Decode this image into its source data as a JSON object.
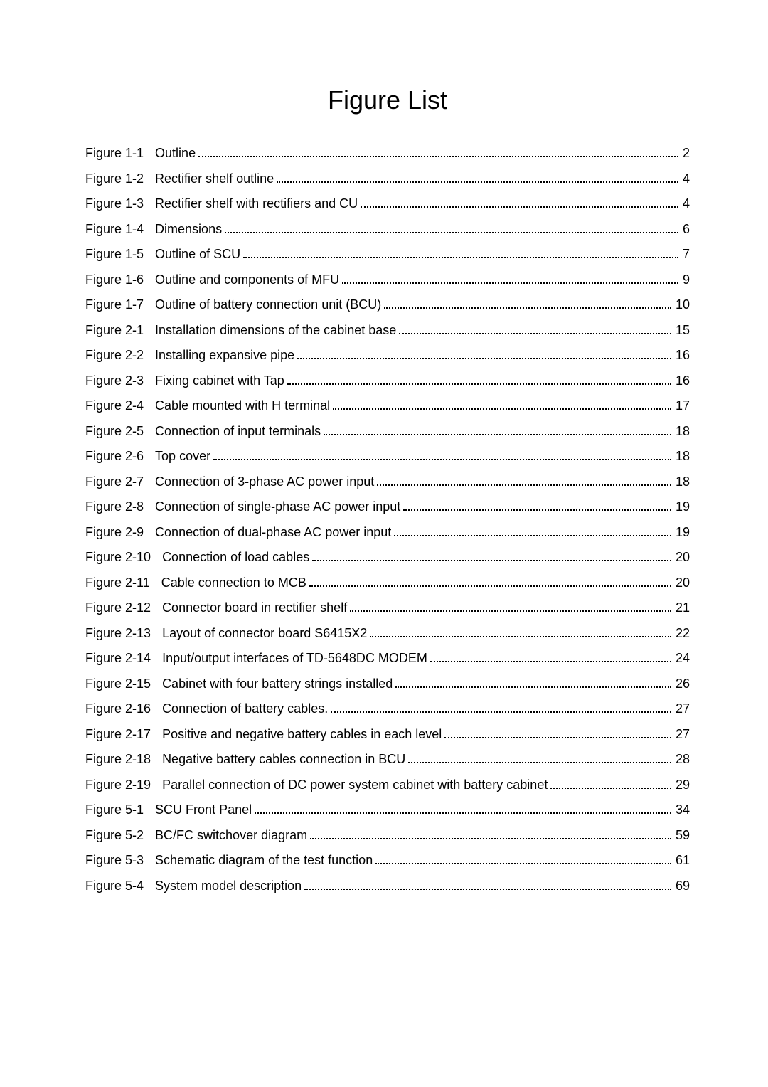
{
  "title": "Figure List",
  "entries": [
    {
      "label": "Figure 1-1",
      "desc": "Outline",
      "page": "2"
    },
    {
      "label": "Figure 1-2",
      "desc": "Rectifier shelf outline",
      "page": "4"
    },
    {
      "label": "Figure 1-3",
      "desc": "Rectifier shelf with rectifiers and CU",
      "page": "4"
    },
    {
      "label": "Figure 1-4",
      "desc": "Dimensions",
      "page": "6"
    },
    {
      "label": "Figure 1-5",
      "desc": "Outline of SCU",
      "page": "7"
    },
    {
      "label": "Figure 1-6",
      "desc": "Outline and components of MFU",
      "page": "9"
    },
    {
      "label": "Figure 1-7",
      "desc": "Outline of battery connection unit (BCU)",
      "page": "10"
    },
    {
      "label": "Figure 2-1",
      "desc": "Installation dimensions of the cabinet base",
      "page": "15"
    },
    {
      "label": "Figure 2-2",
      "desc": "Installing expansive pipe",
      "page": "16"
    },
    {
      "label": "Figure 2-3",
      "desc": "Fixing cabinet with Tap",
      "page": "16"
    },
    {
      "label": "Figure 2-4",
      "desc": "Cable mounted with H terminal",
      "page": "17"
    },
    {
      "label": "Figure 2-5",
      "desc": "Connection of input terminals",
      "page": "18"
    },
    {
      "label": "Figure 2-6",
      "desc": "Top cover",
      "page": "18"
    },
    {
      "label": "Figure 2-7",
      "desc": "Connection of 3-phase AC power input",
      "page": "18"
    },
    {
      "label": "Figure 2-8",
      "desc": "Connection of single-phase AC power input",
      "page": "19"
    },
    {
      "label": "Figure 2-9",
      "desc": "Connection of dual-phase AC power input",
      "page": "19"
    },
    {
      "label": "Figure 2-10",
      "desc": "Connection of load cables",
      "page": "20"
    },
    {
      "label": "Figure 2-11",
      "desc": "Cable connection to MCB",
      "page": "20"
    },
    {
      "label": "Figure 2-12",
      "desc": "Connector board in rectifier shelf",
      "page": "21"
    },
    {
      "label": "Figure 2-13",
      "desc": "Layout of connector board S6415X2",
      "page": "22"
    },
    {
      "label": "Figure 2-14",
      "desc": "Input/output interfaces of TD-5648DC MODEM",
      "page": "24"
    },
    {
      "label": "Figure 2-15",
      "desc": "Cabinet with four battery strings installed",
      "page": "26"
    },
    {
      "label": "Figure 2-16",
      "desc": "Connection of battery cables.",
      "page": "27"
    },
    {
      "label": "Figure 2-17",
      "desc": "Positive and negative battery cables in each level",
      "page": "27"
    },
    {
      "label": "Figure 2-18",
      "desc": "Negative battery cables connection in BCU",
      "page": "28"
    },
    {
      "label": "Figure 2-19",
      "desc": "Parallel connection of DC power system cabinet with battery cabinet",
      "page": "29"
    },
    {
      "label": "Figure 5-1",
      "desc": "SCU Front Panel",
      "page": "34"
    },
    {
      "label": "Figure 5-2",
      "desc": "BC/FC switchover diagram",
      "page": "59"
    },
    {
      "label": "Figure 5-3",
      "desc": "Schematic diagram of the test function",
      "page": "61"
    },
    {
      "label": "Figure 5-4",
      "desc": "System model description",
      "page": "69"
    }
  ]
}
